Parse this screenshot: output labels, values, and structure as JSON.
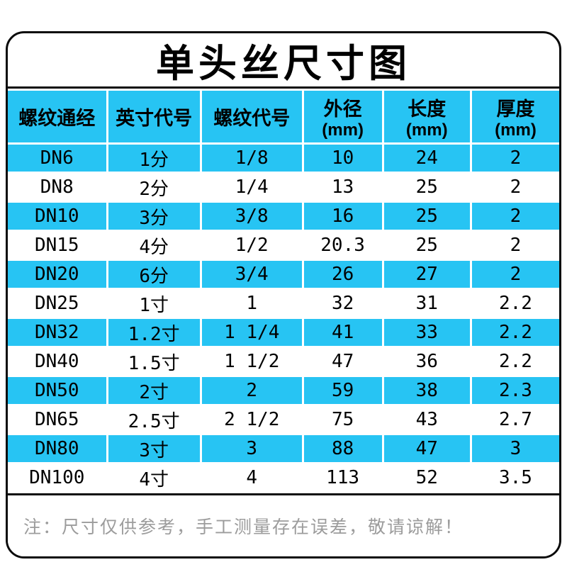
{
  "title": "单头丝尺寸图",
  "note": "注：尺寸仅供参考，手工测量存在误差，敬请谅解！",
  "colors": {
    "accent": "#27c4f3",
    "border": "#0a0a0a",
    "note_text": "#9c9c9c",
    "row_alt": "#ffffff"
  },
  "table": {
    "headers": [
      {
        "label": "螺纹通经",
        "unit": ""
      },
      {
        "label": "英寸代号",
        "unit": ""
      },
      {
        "label": "螺纹代号",
        "unit": ""
      },
      {
        "label": "外径",
        "unit": "(mm)"
      },
      {
        "label": "长度",
        "unit": "(mm)"
      },
      {
        "label": "厚度",
        "unit": "(mm)"
      }
    ]
  },
  "chart_data": {
    "type": "table",
    "title": "单头丝尺寸图",
    "columns": [
      "螺纹通经",
      "英寸代号",
      "螺纹代号",
      "外径(mm)",
      "长度(mm)",
      "厚度(mm)"
    ],
    "rows": [
      [
        "DN6",
        "1分",
        "1/8",
        "10",
        "24",
        "2"
      ],
      [
        "DN8",
        "2分",
        "1/4",
        "13",
        "25",
        "2"
      ],
      [
        "DN10",
        "3分",
        "3/8",
        "16",
        "25",
        "2"
      ],
      [
        "DN15",
        "4分",
        "1/2",
        "20.3",
        "25",
        "2"
      ],
      [
        "DN20",
        "6分",
        "3/4",
        "26",
        "27",
        "2"
      ],
      [
        "DN25",
        "1寸",
        "1",
        "32",
        "31",
        "2.2"
      ],
      [
        "DN32",
        "1.2寸",
        "1 1/4",
        "41",
        "33",
        "2.2"
      ],
      [
        "DN40",
        "1.5寸",
        "1 1/2",
        "47",
        "36",
        "2.2"
      ],
      [
        "DN50",
        "2寸",
        "2",
        "59",
        "38",
        "2.3"
      ],
      [
        "DN65",
        "2.5寸",
        "2 1/2",
        "75",
        "43",
        "2.7"
      ],
      [
        "DN80",
        "3寸",
        "3",
        "88",
        "47",
        "3"
      ],
      [
        "DN100",
        "4寸",
        "4",
        "113",
        "52",
        "3.5"
      ]
    ]
  }
}
